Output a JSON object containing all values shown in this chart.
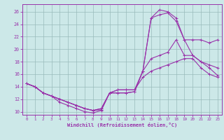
{
  "xlabel": "Windchill (Refroidissement éolien,°C)",
  "bg_color": "#cce8e8",
  "line_color": "#9933aa",
  "grid_color": "#99bbbb",
  "xlim": [
    -0.5,
    23.5
  ],
  "ylim": [
    9.5,
    27.2
  ],
  "xticks": [
    0,
    1,
    2,
    3,
    4,
    5,
    6,
    7,
    8,
    9,
    10,
    11,
    12,
    13,
    14,
    15,
    16,
    17,
    18,
    19,
    20,
    21,
    22,
    23
  ],
  "yticks": [
    10,
    12,
    14,
    16,
    18,
    20,
    22,
    24,
    26
  ],
  "lines": [
    [
      14.5,
      14.0,
      13.0,
      12.5,
      11.5,
      11.0,
      10.5,
      10.0,
      9.8,
      10.2,
      13.0,
      13.0,
      13.0,
      13.2,
      16.5,
      25.0,
      25.5,
      25.8,
      24.5,
      21.5,
      21.5,
      21.5,
      21.0,
      21.5
    ],
    [
      14.5,
      14.0,
      13.0,
      12.5,
      12.0,
      11.5,
      11.0,
      10.5,
      10.2,
      10.3,
      13.0,
      13.0,
      13.0,
      13.2,
      16.5,
      25.0,
      26.3,
      26.0,
      25.0,
      21.5,
      19.0,
      18.0,
      17.5,
      17.0
    ],
    [
      14.5,
      14.0,
      13.0,
      12.5,
      12.0,
      11.5,
      11.0,
      10.5,
      10.2,
      10.5,
      13.0,
      13.5,
      13.5,
      13.5,
      16.5,
      18.5,
      19.0,
      19.5,
      21.5,
      19.0,
      19.0,
      18.0,
      17.0,
      15.8
    ],
    [
      14.5,
      14.0,
      13.0,
      12.5,
      12.0,
      11.5,
      11.0,
      10.5,
      10.2,
      10.5,
      13.0,
      13.5,
      13.5,
      13.5,
      15.5,
      16.5,
      17.0,
      17.5,
      18.0,
      18.5,
      18.5,
      17.0,
      16.0,
      15.5
    ]
  ]
}
